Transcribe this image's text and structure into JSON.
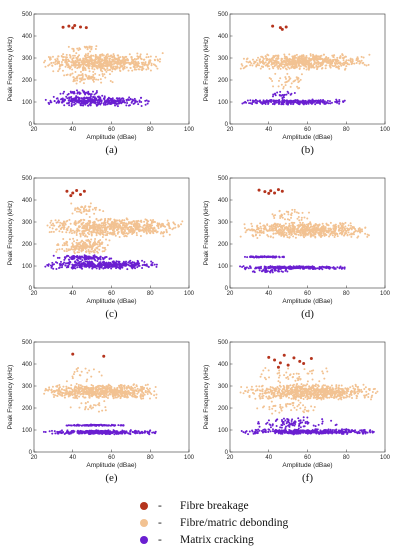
{
  "legend": [
    {
      "label": "Fibre breakage",
      "color": "#b5341d"
    },
    {
      "label": "Fibre/matric debonding",
      "color": "#f2c292"
    },
    {
      "label": "Matrix cracking",
      "color": "#6a1fd1"
    }
  ],
  "legend_dash": "-",
  "chart_data": [
    {
      "type": "scatter",
      "panel": "(a)",
      "xlabel": "Amplitude (dBae)",
      "ylabel": "Peak Frequency (kHz)",
      "xlim": [
        20,
        100
      ],
      "ylim": [
        0,
        500
      ],
      "xticks": [
        20,
        40,
        60,
        80,
        100
      ],
      "yticks": [
        0,
        100,
        200,
        300,
        400,
        500
      ],
      "series": [
        {
          "name": "Fibre breakage",
          "points": [
            [
              35,
              440
            ],
            [
              38,
              445
            ],
            [
              40,
              437
            ],
            [
              44,
              441
            ],
            [
              47,
              438
            ],
            [
              41,
              448
            ]
          ]
        },
        {
          "name": "Fibre/matric debonding",
          "clusters": [
            {
              "x": [
                27,
                85
              ],
              "y": [
                235,
                325
              ],
              "n": 700
            },
            {
              "x": [
                35,
                60
              ],
              "y": [
                180,
                240
              ],
              "n": 80
            },
            {
              "x": [
                38,
                55
              ],
              "y": [
                325,
                360
              ],
              "n": 25
            }
          ]
        },
        {
          "name": "Matrix cracking",
          "clusters": [
            {
              "x": [
                27,
                78
              ],
              "y": [
                80,
                130
              ],
              "n": 380
            },
            {
              "x": [
                35,
                55
              ],
              "y": [
                130,
                155
              ],
              "n": 45
            }
          ]
        }
      ]
    },
    {
      "type": "scatter",
      "panel": "(b)",
      "xlabel": "Amplitude (dBae)",
      "ylabel": "Peak Frequency (kHz)",
      "xlim": [
        20,
        100
      ],
      "ylim": [
        0,
        500
      ],
      "xticks": [
        20,
        40,
        60,
        80,
        100
      ],
      "yticks": [
        0,
        100,
        200,
        300,
        400,
        500
      ],
      "series": [
        {
          "name": "Fibre breakage",
          "points": [
            [
              42,
              445
            ],
            [
              46,
              438
            ],
            [
              49,
              441
            ],
            [
              47,
              430
            ]
          ]
        },
        {
          "name": "Fibre/matric debonding",
          "clusters": [
            {
              "x": [
                27,
                90
              ],
              "y": [
                245,
                320
              ],
              "n": 650
            },
            {
              "x": [
                40,
                60
              ],
              "y": [
                150,
                245
              ],
              "n": 40
            }
          ]
        },
        {
          "name": "Matrix cracking",
          "clusters": [
            {
              "x": [
                28,
                78
              ],
              "y": [
                88,
                112
              ],
              "n": 320
            },
            {
              "x": [
                42,
                52
              ],
              "y": [
                112,
                150
              ],
              "n": 25
            }
          ]
        }
      ]
    },
    {
      "type": "scatter",
      "panel": "(c)",
      "xlabel": "Amplitude (dBae)",
      "ylabel": "Peak Frequency (kHz)",
      "xlim": [
        20,
        100
      ],
      "ylim": [
        0,
        500
      ],
      "xticks": [
        20,
        40,
        60,
        80,
        100
      ],
      "yticks": [
        0,
        100,
        200,
        300,
        400,
        500
      ],
      "series": [
        {
          "name": "Fibre breakage",
          "points": [
            [
              37,
              440
            ],
            [
              40,
              432
            ],
            [
              42,
              443
            ],
            [
              44,
              425
            ],
            [
              46,
              440
            ],
            [
              39,
              420
            ]
          ]
        },
        {
          "name": "Fibre/matric debonding",
          "clusters": [
            {
              "x": [
                28,
                95
              ],
              "y": [
                230,
                320
              ],
              "n": 700
            },
            {
              "x": [
                32,
                60
              ],
              "y": [
                150,
                230
              ],
              "n": 200
            },
            {
              "x": [
                38,
                55
              ],
              "y": [
                320,
                390
              ],
              "n": 40
            }
          ]
        },
        {
          "name": "Matrix cracking",
          "clusters": [
            {
              "x": [
                27,
                82
              ],
              "y": [
                85,
                125
              ],
              "n": 420
            },
            {
              "x": [
                32,
                60
              ],
              "y": [
                125,
                150
              ],
              "n": 120
            }
          ]
        }
      ]
    },
    {
      "type": "scatter",
      "panel": "(d)",
      "xlabel": "Amplitude (dBae)",
      "ylabel": "Peak Frequency (kHz)",
      "xlim": [
        20,
        100
      ],
      "ylim": [
        0,
        500
      ],
      "xticks": [
        20,
        40,
        60,
        80,
        100
      ],
      "yticks": [
        0,
        100,
        200,
        300,
        400,
        500
      ],
      "series": [
        {
          "name": "Fibre breakage",
          "points": [
            [
              35,
              445
            ],
            [
              38,
              438
            ],
            [
              41,
              442
            ],
            [
              43,
              432
            ],
            [
              45,
              447
            ],
            [
              47,
              440
            ],
            [
              40,
              430
            ]
          ]
        },
        {
          "name": "Fibre/matric debonding",
          "clusters": [
            {
              "x": [
                27,
                90
              ],
              "y": [
                225,
                300
              ],
              "n": 650
            },
            {
              "x": [
                35,
                60
              ],
              "y": [
                300,
                360
              ],
              "n": 40
            }
          ]
        },
        {
          "name": "Matrix cracking",
          "clusters": [
            {
              "x": [
                27,
                48
              ],
              "y": [
                138,
                145
              ],
              "n": 90
            },
            {
              "x": [
                27,
                78
              ],
              "y": [
                85,
                100
              ],
              "n": 300
            },
            {
              "x": [
                30,
                50
              ],
              "y": [
                70,
                85
              ],
              "n": 40
            }
          ]
        }
      ]
    },
    {
      "type": "scatter",
      "panel": "(e)",
      "xlabel": "Amplitude (dBae)",
      "ylabel": "Peak Frequency (kHz)",
      "xlim": [
        20,
        100
      ],
      "ylim": [
        0,
        500
      ],
      "xticks": [
        20,
        40,
        60,
        80,
        100
      ],
      "yticks": [
        0,
        100,
        200,
        300,
        400,
        500
      ],
      "series": [
        {
          "name": "Fibre breakage",
          "points": [
            [
              40,
              445
            ],
            [
              56,
              435
            ]
          ]
        },
        {
          "name": "Fibre/matric debonding",
          "clusters": [
            {
              "x": [
                27,
                82
              ],
              "y": [
                240,
                310
              ],
              "n": 650
            },
            {
              "x": [
                38,
                55
              ],
              "y": [
                310,
                390
              ],
              "n": 20
            },
            {
              "x": [
                38,
                58
              ],
              "y": [
                180,
                240
              ],
              "n": 25
            }
          ]
        },
        {
          "name": "Matrix cracking",
          "clusters": [
            {
              "x": [
                35,
                68
              ],
              "y": [
                118,
                125
              ],
              "n": 110
            },
            {
              "x": [
                27,
                82
              ],
              "y": [
                80,
                100
              ],
              "n": 380
            }
          ]
        }
      ]
    },
    {
      "type": "scatter",
      "panel": "(f)",
      "xlabel": "Amplitude (dBae)",
      "ylabel": "Peak Frequency (kHz)",
      "xlim": [
        20,
        100
      ],
      "ylim": [
        0,
        500
      ],
      "xticks": [
        20,
        40,
        60,
        80,
        100
      ],
      "yticks": [
        0,
        100,
        200,
        300,
        400,
        500
      ],
      "series": [
        {
          "name": "Fibre breakage",
          "points": [
            [
              40,
              430
            ],
            [
              43,
              418
            ],
            [
              46,
              405
            ],
            [
              48,
              440
            ],
            [
              50,
              395
            ],
            [
              53,
              428
            ],
            [
              56,
              412
            ],
            [
              58,
              402
            ],
            [
              62,
              425
            ],
            [
              45,
              385
            ]
          ]
        },
        {
          "name": "Fibre/matric debonding",
          "clusters": [
            {
              "x": [
                27,
                95
              ],
              "y": [
                235,
                310
              ],
              "n": 750
            },
            {
              "x": [
                35,
                70
              ],
              "y": [
                310,
                390
              ],
              "n": 50
            },
            {
              "x": [
                35,
                65
              ],
              "y": [
                170,
                235
              ],
              "n": 50
            }
          ]
        },
        {
          "name": "Matrix cracking",
          "clusters": [
            {
              "x": [
                27,
                95
              ],
              "y": [
                80,
                105
              ],
              "n": 450
            },
            {
              "x": [
                35,
                75
              ],
              "y": [
                105,
                160
              ],
              "n": 90
            }
          ]
        }
      ]
    }
  ]
}
